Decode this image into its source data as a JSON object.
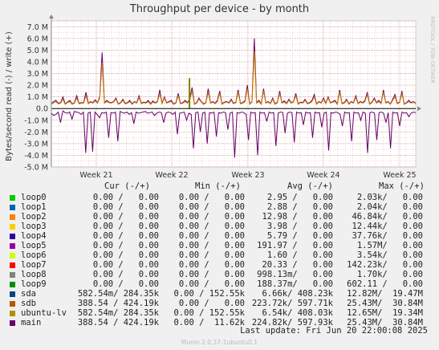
{
  "chart_data": {
    "type": "line",
    "title": "Throughput per device - by month",
    "ylabel": "Bytes/second read (-) / write (+)",
    "ylim": [
      -5000000,
      7500000
    ],
    "y_ticks": [
      7000000,
      6000000,
      5000000,
      4000000,
      3000000,
      2000000,
      1000000,
      0,
      -1000000,
      -2000000,
      -3000000,
      -4000000,
      -5000000
    ],
    "y_tick_labels": [
      "7.0 M",
      "6.0 M",
      "5.0 M",
      "4.0 M",
      "3.0 M",
      "2.0 M",
      "1.0 M",
      "0.0",
      "-1.0 M",
      "-2.0 M",
      "-3.0 M",
      "-4.0 M",
      "-5.0 M"
    ],
    "x_tick_labels": [
      "Week 21",
      "Week 22",
      "Week 23",
      "Week 24",
      "Week 25"
    ],
    "grid": true,
    "side_label": "RRDTOOL / TOBI OETIKER",
    "series": [
      {
        "name": "main",
        "color": "#660066",
        "write_values": [
          400000,
          600000,
          700000,
          450000,
          500000,
          1000000,
          400000,
          550000,
          700000,
          400000,
          500000,
          1100000,
          450000,
          500000,
          500000,
          1400000,
          450000,
          600000,
          500000,
          750000,
          500000,
          1000000,
          4800000,
          500000,
          700000,
          550000,
          500000,
          600000,
          900000,
          400000,
          500000,
          800000,
          450000,
          500000,
          700000,
          400000,
          600000,
          500000,
          1100000,
          450000,
          550000,
          500000,
          700000,
          400000,
          650000,
          500000,
          600000,
          1600000,
          450000,
          1000000,
          500000,
          600000,
          700000,
          400000,
          500000,
          1300000,
          450000,
          500000,
          700000,
          500000,
          800000,
          1800000,
          400000,
          500000,
          900000,
          600000,
          400000,
          500000,
          1700000,
          500000,
          600000,
          450000,
          700000,
          1500000,
          400000,
          550000,
          600000,
          500000,
          800000,
          450000,
          550000,
          1600000,
          450000,
          500000,
          700000,
          2000000,
          400000,
          600000,
          6000000,
          500000,
          700000,
          400000,
          1700000,
          500000,
          600000,
          450000,
          900000,
          400000,
          550000,
          1500000,
          500000,
          650000,
          450000,
          800000,
          500000,
          600000,
          1300000,
          400000,
          550000,
          500000,
          800000,
          450000,
          500000,
          700000,
          1200000,
          400000,
          600000,
          500000,
          900000,
          450000,
          1000000,
          500000,
          600000,
          700000,
          400000,
          1600000,
          450000,
          500000,
          800000,
          400000,
          600000,
          500000,
          1100000,
          450000,
          600000,
          500000,
          700000,
          1400000,
          400000,
          550000,
          900000,
          500000,
          700000,
          450000,
          1600000,
          500000,
          600000,
          400000,
          800000,
          1200000,
          450000,
          550000,
          1500000,
          400000,
          500000,
          700000,
          500000,
          600000,
          450000
        ],
        "read_values": [
          -400000,
          -600000,
          -500000,
          -300000,
          -1200000,
          -200000,
          -350000,
          -400000,
          -300000,
          -900000,
          -250000,
          -300000,
          -350000,
          -500000,
          -300000,
          -3800000,
          -400000,
          -300000,
          -3700000,
          -300000,
          -500000,
          -800000,
          -350000,
          -400000,
          -300000,
          -2500000,
          -350000,
          -400000,
          -300000,
          -2800000,
          -250000,
          -350000,
          -400000,
          -300000,
          -500000,
          -350000,
          -1300000,
          -300000,
          -400000,
          -350000,
          -300000,
          -250000,
          -400000,
          -350000,
          -300000,
          -600000,
          -400000,
          -300000,
          -350000,
          -1200000,
          -400000,
          -300000,
          -350000,
          -500000,
          -300000,
          -2200000,
          -400000,
          -350000,
          -300000,
          -1000000,
          -400000,
          -500000,
          -3400000,
          -350000,
          -300000,
          -2000000,
          -400000,
          -300000,
          -3000000,
          -350000,
          -400000,
          -300000,
          -2400000,
          -350000,
          -400000,
          -300000,
          -350000,
          -1800000,
          -400000,
          -300000,
          -4200000,
          -350000,
          -400000,
          -300000,
          -350000,
          -500000,
          -2700000,
          -300000,
          -400000,
          -350000,
          -4000000,
          -300000,
          -400000,
          -350000,
          -1100000,
          -300000,
          -400000,
          -350000,
          -3200000,
          -400000,
          -300000,
          -350000,
          -2100000,
          -400000,
          -300000,
          -350000,
          -2900000,
          -300000,
          -400000,
          -350000,
          -1400000,
          -300000,
          -400000,
          -350000,
          -2500000,
          -300000,
          -400000,
          -350000,
          -1600000,
          -400000,
          -300000,
          -3600000,
          -350000,
          -400000,
          -300000,
          -350000,
          -500000,
          -1500000,
          -300000,
          -400000,
          -350000,
          -2800000,
          -300000,
          -400000,
          -350000,
          -1000000,
          -300000,
          -400000,
          -3800000,
          -350000,
          -300000,
          -400000,
          -2700000,
          -350000,
          -300000,
          -400000,
          -1200000,
          -350000,
          -3400000,
          -300000,
          -400000,
          -350000,
          -1500000,
          -300000,
          -400000,
          -350000,
          -700000,
          -400000,
          -300000,
          -350000
        ]
      },
      {
        "name": "ubuntu-lv",
        "color": "#CC7F00",
        "write_values": [
          350000,
          500000,
          600000,
          400000,
          450000,
          800000,
          350000,
          500000,
          600000,
          350000,
          450000,
          900000,
          400000,
          450000,
          450000,
          1100000,
          400000,
          550000,
          450000,
          650000,
          450000,
          900000,
          3900000,
          450000,
          600000,
          500000,
          450000,
          550000,
          800000,
          350000,
          450000,
          700000,
          400000,
          450000,
          600000,
          350000,
          550000,
          450000,
          950000,
          400000,
          500000,
          450000,
          600000,
          350000,
          550000,
          450000,
          550000,
          1300000,
          400000,
          900000,
          450000,
          550000,
          600000,
          350000,
          450000,
          1100000,
          400000,
          450000,
          600000,
          450000,
          700000,
          1500000,
          350000,
          450000,
          800000,
          550000,
          350000,
          450000,
          1400000,
          450000,
          550000,
          400000,
          600000,
          1300000,
          350000,
          500000,
          550000,
          450000,
          700000,
          400000,
          500000,
          1400000,
          400000,
          450000,
          600000,
          1700000,
          350000,
          550000,
          4900000,
          450000,
          600000,
          350000,
          1500000,
          450000,
          550000,
          400000,
          800000,
          350000,
          500000,
          1300000,
          450000,
          550000,
          400000,
          700000,
          450000,
          550000,
          1100000,
          350000,
          500000,
          450000,
          700000,
          400000,
          450000,
          600000,
          1000000,
          350000,
          550000,
          450000,
          800000,
          400000,
          900000,
          450000,
          550000,
          600000,
          350000,
          1400000,
          400000,
          450000,
          700000,
          350000,
          550000,
          450000,
          950000,
          400000,
          550000,
          450000,
          600000,
          1200000,
          350000,
          500000,
          800000,
          450000,
          600000,
          400000,
          1400000,
          450000,
          550000,
          350000,
          700000,
          1000000,
          400000,
          500000,
          1300000,
          350000,
          450000,
          600000,
          450000,
          550000,
          400000
        ]
      },
      {
        "name": "loop8",
        "color": "#808000",
        "spike_at_fraction": 0.379,
        "spike_value": 2600000
      }
    ]
  },
  "legend": {
    "headers": {
      "cur": "Cur (-/+)",
      "min": "Min (-/+)",
      "avg": "Avg (-/+)",
      "max": "Max (-/+)"
    },
    "rows": [
      {
        "name": "loop0",
        "color": "#00CC00",
        "cur": "0.00 /   0.00",
        "min": "0.00 /   0.00",
        "avg": "2.95 /   0.00",
        "max": "2.03k/   0.00"
      },
      {
        "name": "loop1",
        "color": "#0066B3",
        "cur": "0.00 /   0.00",
        "min": "0.00 /   0.00",
        "avg": "2.88 /   0.00",
        "max": "2.04k/   0.00"
      },
      {
        "name": "loop2",
        "color": "#FF8000",
        "cur": "0.00 /   0.00",
        "min": "0.00 /   0.00",
        "avg": "12.98 /   0.00",
        "max": "46.84k/   0.00"
      },
      {
        "name": "loop3",
        "color": "#FFCC00",
        "cur": "0.00 /   0.00",
        "min": "0.00 /   0.00",
        "avg": "3.98 /   0.00",
        "max": "12.44k/   0.00"
      },
      {
        "name": "loop4",
        "color": "#330099",
        "cur": "0.00 /   0.00",
        "min": "0.00 /   0.00",
        "avg": "5.79 /   0.00",
        "max": "37.76k/   0.00"
      },
      {
        "name": "loop5",
        "color": "#990099",
        "cur": "0.00 /   0.00",
        "min": "0.00 /   0.00",
        "avg": "191.97 /   0.00",
        "max": "1.57M/   0.00"
      },
      {
        "name": "loop6",
        "color": "#CCFF00",
        "cur": "0.00 /   0.00",
        "min": "0.00 /   0.00",
        "avg": "1.60 /   0.00",
        "max": "3.54k/   0.00"
      },
      {
        "name": "loop7",
        "color": "#FF0000",
        "cur": "0.00 /   0.00",
        "min": "0.00 /   0.00",
        "avg": "20.33 /   0.00",
        "max": "142.23k/   0.00"
      },
      {
        "name": "loop8",
        "color": "#808080",
        "cur": "0.00 /   0.00",
        "min": "0.00 /   0.00",
        "avg": "998.13m/   0.00",
        "max": "1.70k/   0.00"
      },
      {
        "name": "loop9",
        "color": "#008F00",
        "cur": "0.00 /   0.00",
        "min": "0.00 /   0.00",
        "avg": "188.37m/   0.00",
        "max": "602.11 /   0.00"
      },
      {
        "name": "sda",
        "color": "#00487D",
        "cur": "582.54m/ 284.35k",
        "min": "0.00 / 152.55k",
        "avg": "6.66k/ 408.23k",
        "max": "12.82M/  19.47M"
      },
      {
        "name": "sdb",
        "color": "#B35A00",
        "cur": "388.54 / 424.19k",
        "min": "0.00 /   0.00",
        "avg": "223.72k/ 597.71k",
        "max": "25.43M/  30.84M"
      },
      {
        "name": "ubuntu-lv",
        "color": "#B38F00",
        "cur": "582.54m/ 284.35k",
        "min": "0.00 / 152.55k",
        "avg": "6.54k/ 408.03k",
        "max": "12.65M/  19.34M"
      },
      {
        "name": "main",
        "color": "#6B006B",
        "cur": "388.54 / 424.19k",
        "min": "0.00 /  11.62k",
        "avg": "224.82k/ 597.93k",
        "max": "25.43M/  30.84M"
      }
    ]
  },
  "last_update": "Last update: Fri Jun 20 22:00:08 2025",
  "footer": "Munin 2.0.37-1ubuntu0.1"
}
